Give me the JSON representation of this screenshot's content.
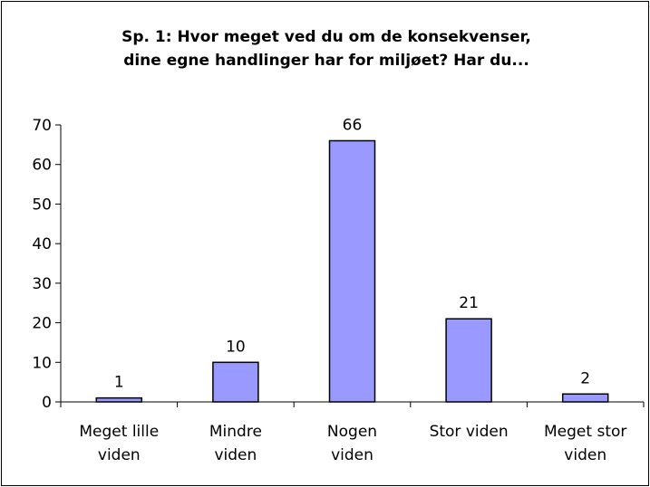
{
  "chart_data": {
    "type": "bar",
    "title": "Sp. 1: Hvor meget ved du om de konsekvenser,\ndine egne handlinger har for miljøet? Har du...",
    "categories": [
      "Meget lille\nviden",
      "Mindre\nviden",
      "Nogen\nviden",
      "Stor viden",
      "Meget stor\nviden"
    ],
    "values": [
      1,
      10,
      66,
      21,
      2
    ],
    "color": "#9999ff",
    "ylim": [
      0,
      70
    ],
    "yticks": [
      0,
      10,
      20,
      30,
      40,
      50,
      60,
      70
    ],
    "grid": false
  }
}
